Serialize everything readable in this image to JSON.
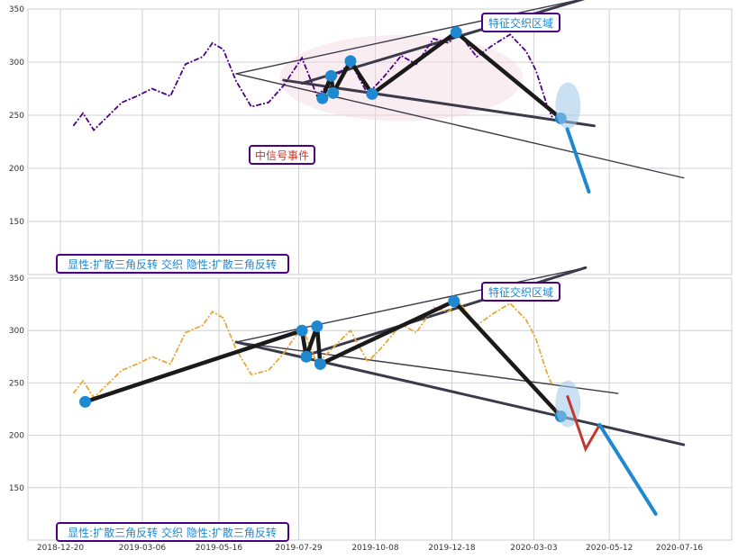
{
  "colors": {
    "top_price": "#4b0082",
    "bottom_price": "#e8a838",
    "pattern_line": "#1a1a1a",
    "trend_line": "#3a3a4a",
    "pivot": "#1e88d0",
    "label_border": "#4b0082",
    "label_text": "#1e88d0",
    "event_text": "#c0392b",
    "ellipse_fill": "#f3d6e0",
    "proj_blue": "#1e88d0",
    "proj_red": "#c0392b"
  },
  "chart_data": [
    {
      "type": "line",
      "ylim": [
        100,
        350
      ],
      "yticks": [
        "350",
        "300",
        "250",
        "200",
        "150"
      ],
      "series": [
        {
          "values_from": "date-indexed price",
          "x": [
            "2019-01-01",
            "2019-01-10",
            "2019-01-20",
            "2019-02-01",
            "2019-02-15",
            "2019-03-01",
            "2019-03-15",
            "2019-04-01",
            "2019-04-15",
            "2019-05-01",
            "2019-05-10",
            "2019-05-20",
            "2019-06-01",
            "2019-06-15",
            "2019-07-01",
            "2019-07-15",
            "2019-08-01",
            "2019-08-15",
            "2019-09-01",
            "2019-09-15",
            "2019-10-01",
            "2019-10-15",
            "2019-11-01",
            "2019-11-15",
            "2019-12-01",
            "2019-12-15",
            "2019-12-24",
            "2020-01-10",
            "2020-01-25",
            "2020-02-10",
            "2020-02-25",
            "2020-03-05",
            "2020-03-15",
            "2020-03-20"
          ],
          "y": [
            240,
            252,
            236,
            248,
            262,
            268,
            275,
            268,
            298,
            305,
            318,
            312,
            282,
            258,
            262,
            278,
            304,
            268,
            286,
            300,
            270,
            285,
            306,
            298,
            322,
            318,
            328,
            305,
            316,
            326,
            310,
            292,
            260,
            248
          ]
        }
      ],
      "pattern": {
        "pivots": [
          [
            "2019-08-20",
            266
          ],
          [
            "2019-08-28",
            287
          ],
          [
            "2019-08-30",
            271
          ],
          [
            "2019-09-15",
            301
          ],
          [
            "2019-10-05",
            270
          ],
          [
            "2019-12-22",
            328
          ],
          [
            "2020-03-28",
            247
          ]
        ],
        "upper_line": [
          [
            "2019-08-01",
            280
          ],
          [
            "2020-04-20",
            360
          ]
        ],
        "lower_line": [
          [
            "2019-07-15",
            283
          ],
          [
            "2020-04-28",
            240
          ]
        ],
        "wide_upper": [
          [
            "2019-06-01",
            289
          ],
          [
            "2020-04-20",
            360
          ]
        ],
        "wide_lower": [
          [
            "2019-06-01",
            289
          ],
          [
            "2020-07-20",
            191
          ]
        ],
        "projection": [
          [
            "2020-04-03",
            237
          ],
          [
            "2020-04-23",
            178
          ]
        ]
      },
      "annotations": {
        "zone": "特征交织区域",
        "event": "中信号事件",
        "summary": "显性:扩散三角反转 交织 隐性:扩散三角反转"
      }
    },
    {
      "type": "line",
      "ylim": [
        100,
        350
      ],
      "yticks": [
        "350",
        "300",
        "250",
        "200",
        "150"
      ],
      "x_ticks": [
        "2018-12-20",
        "2019-03-06",
        "2019-05-16",
        "2019-07-29",
        "2019-10-08",
        "2019-12-18",
        "2020-03-03",
        "2020-05-12",
        "2020-07-16"
      ],
      "series": [
        {
          "x": [
            "2019-01-01",
            "2019-01-10",
            "2019-01-20",
            "2019-02-01",
            "2019-02-15",
            "2019-03-01",
            "2019-03-15",
            "2019-04-01",
            "2019-04-15",
            "2019-05-01",
            "2019-05-10",
            "2019-05-20",
            "2019-06-01",
            "2019-06-15",
            "2019-07-01",
            "2019-07-15",
            "2019-08-01",
            "2019-08-15",
            "2019-09-01",
            "2019-09-15",
            "2019-10-01",
            "2019-10-15",
            "2019-11-01",
            "2019-11-15",
            "2019-12-01",
            "2019-12-15",
            "2019-12-24",
            "2020-01-10",
            "2020-01-25",
            "2020-02-10",
            "2020-02-25",
            "2020-03-05",
            "2020-03-15",
            "2020-03-20"
          ],
          "y": [
            240,
            252,
            236,
            248,
            262,
            268,
            275,
            268,
            298,
            305,
            318,
            312,
            282,
            258,
            262,
            278,
            304,
            268,
            286,
            300,
            270,
            285,
            306,
            298,
            322,
            318,
            328,
            305,
            316,
            326,
            310,
            292,
            260,
            248
          ]
        }
      ],
      "pattern": {
        "pivots": [
          [
            "2019-01-12",
            232
          ],
          [
            "2019-08-01",
            300
          ],
          [
            "2019-08-05",
            275
          ],
          [
            "2019-08-15",
            304
          ],
          [
            "2019-08-18",
            268
          ],
          [
            "2019-12-20",
            328
          ],
          [
            "2020-03-28",
            218
          ]
        ],
        "upper_line": [
          [
            "2019-08-10",
            278
          ],
          [
            "2020-04-20",
            360
          ]
        ],
        "lower_line": [
          [
            "2019-06-01",
            289
          ],
          [
            "2020-07-20",
            191
          ]
        ],
        "wide_upper": [
          [
            "2019-06-01",
            289
          ],
          [
            "2020-04-20",
            360
          ]
        ],
        "wide_lower": [
          [
            "2019-06-01",
            289
          ],
          [
            "2020-05-20",
            240
          ]
        ],
        "projection_red": [
          [
            "2020-04-03",
            238
          ],
          [
            "2020-04-20",
            187
          ],
          [
            "2020-05-03",
            210
          ]
        ],
        "projection_blue": [
          [
            "2020-05-03",
            210
          ],
          [
            "2020-06-24",
            125
          ]
        ]
      },
      "annotations": {
        "zone": "特征交织区域",
        "summary": "显性:扩散三角反转 交织 隐性:扩散三角反转"
      }
    }
  ]
}
